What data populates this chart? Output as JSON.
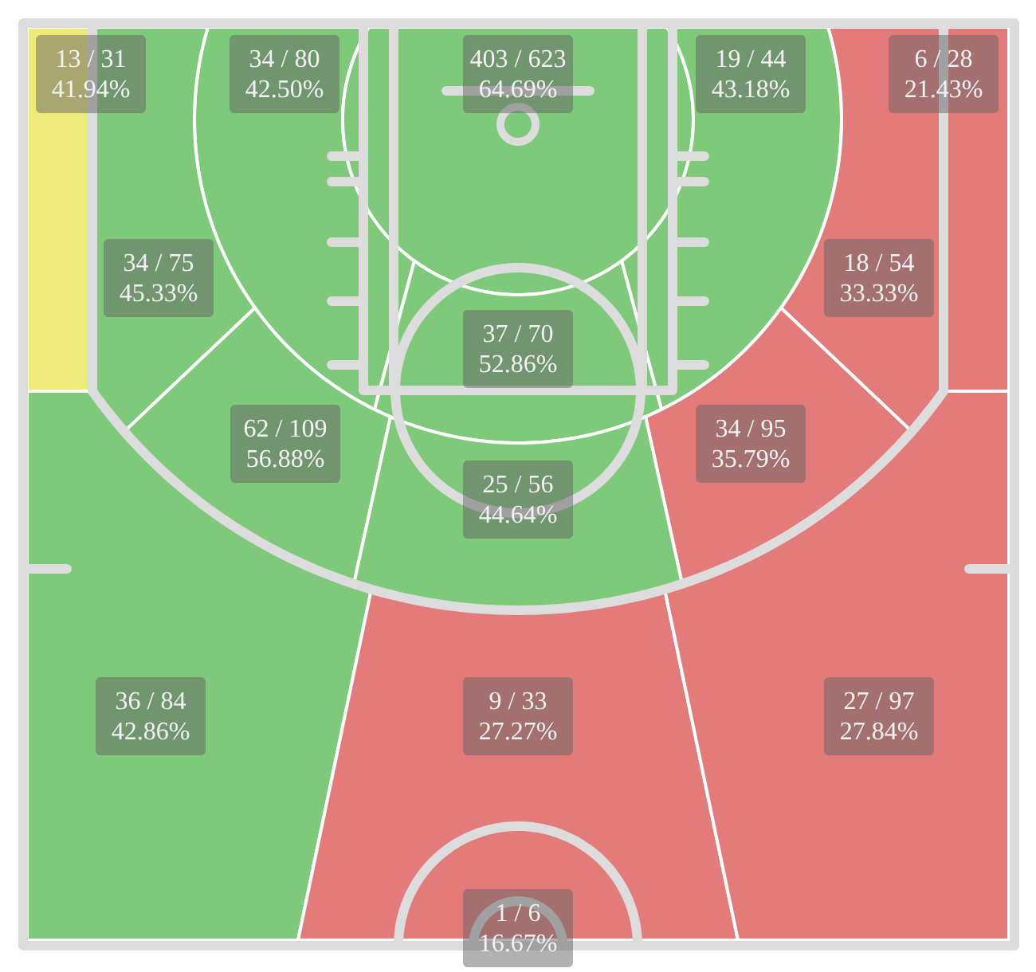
{
  "chart_data": {
    "type": "other",
    "categories": [
      null,
      null,
      null,
      null,
      null,
      null,
      null,
      null,
      null,
      null,
      null,
      null,
      null,
      null,
      null
    ],
    "values": [
      41.94,
      42.5,
      64.69,
      43.18,
      21.43,
      45.33,
      33.33,
      52.86,
      56.88,
      35.79,
      44.64,
      42.86,
      27.27,
      27.84,
      16.67
    ],
    "value_labels": [
      "13 / 31\n41.94%",
      "34 / 80\n42.50%",
      "403 / 623\n64.69%",
      "19 / 44\n43.18%",
      "6 / 28\n21.43%",
      "34 / 75\n45.33%",
      "18 / 54\n33.33%",
      "37 / 70\n52.86%",
      "62 / 109\n56.88%",
      "34 / 95\n35.79%",
      "25 / 56\n44.64%",
      "36 / 84\n42.86%",
      "9 / 33\n27.27%",
      "27 / 97\n27.84%",
      "1 / 6\n16.67%"
    ],
    "colors": [
      "#eeea7a",
      "#7fc97b",
      "#7fc97b",
      "#7fc97b",
      "#e37b7b",
      "#7fc97b",
      "#e37b7b",
      "#7fc97b",
      "#7fc97b",
      "#e37b7b",
      "#7fc97b",
      "#7fc97b",
      "#e37b7b",
      "#e37b7b",
      null
    ]
  }
}
